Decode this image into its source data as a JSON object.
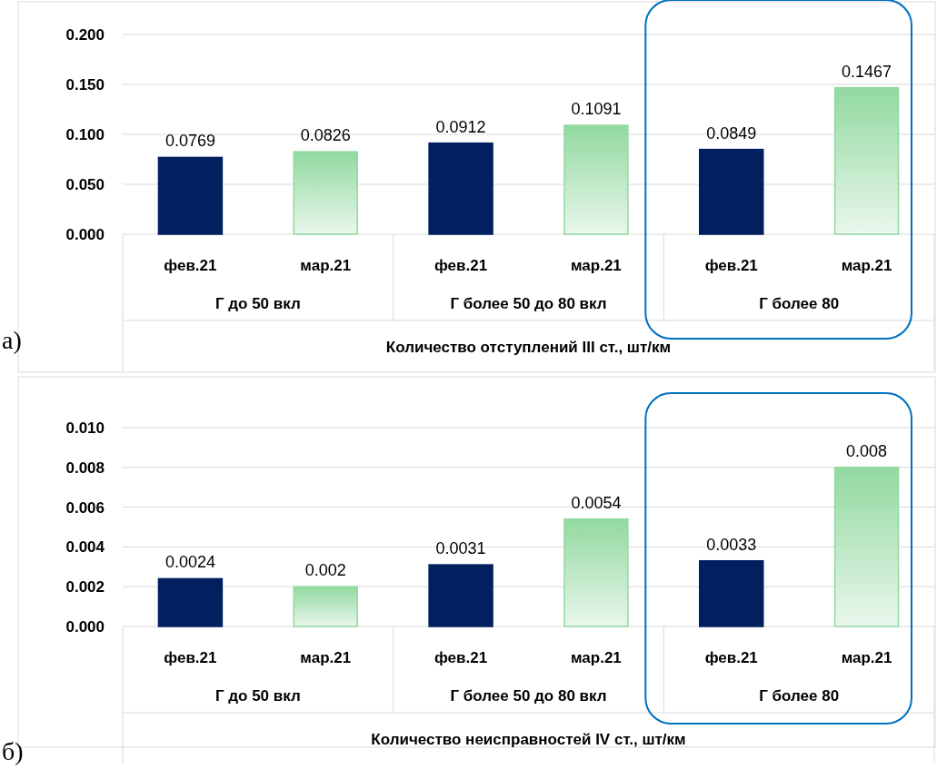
{
  "chart_data": [
    {
      "type": "bar",
      "xlabel": "Количество отступлений III ст., шт/км",
      "categories": [
        "фев.21",
        "мар.21",
        "фев.21",
        "мар.21",
        "фев.21",
        "мар.21"
      ],
      "values": [
        0.0769,
        0.0826,
        0.0912,
        0.1091,
        0.0849,
        0.1467
      ],
      "colors": [
        "#002060",
        "#92d9a0",
        "#002060",
        "#92d9a0",
        "#002060",
        "#92d9a0"
      ],
      "ylim": [
        0,
        0.2
      ],
      "yticks": [
        {
          "value": 0,
          "label": "0.000"
        },
        {
          "value": 0.05,
          "label": "0.050"
        },
        {
          "value": 0.1,
          "label": "0.100"
        },
        {
          "value": 0.15,
          "label": "0.150"
        },
        {
          "value": 0.2,
          "label": "0.200"
        }
      ],
      "grid": "y",
      "data_labels": true,
      "annotations": [
        "Г до 50 вкл",
        "Г более 50 до 80 вкл",
        "Г более 80",
        "а)"
      ]
    },
    {
      "type": "bar",
      "xlabel": "Количество неисправностей IV ст., шт/км",
      "categories": [
        "фев.21",
        "мар.21",
        "фев.21",
        "мар.21",
        "фев.21",
        "мар.21"
      ],
      "values": [
        0.0024,
        0.002,
        0.0031,
        0.0054,
        0.0033,
        0.008
      ],
      "colors": [
        "#002060",
        "#92d9a0",
        "#002060",
        "#92d9a0",
        "#002060",
        "#92d9a0"
      ],
      "ylim": [
        0,
        0.01
      ],
      "yticks": [
        {
          "value": 0,
          "label": "0.000"
        },
        {
          "value": 0.002,
          "label": "0.002"
        },
        {
          "value": 0.004,
          "label": "0.004"
        },
        {
          "value": 0.006,
          "label": "0.006"
        },
        {
          "value": 0.008,
          "label": "0.008"
        },
        {
          "value": 0.01,
          "label": "0.010"
        }
      ],
      "grid": "y",
      "data_labels": true,
      "annotations": [
        "Г до 50 вкл",
        "Г более 50 до 80 вкл",
        "Г более 80",
        "б)"
      ]
    }
  ]
}
